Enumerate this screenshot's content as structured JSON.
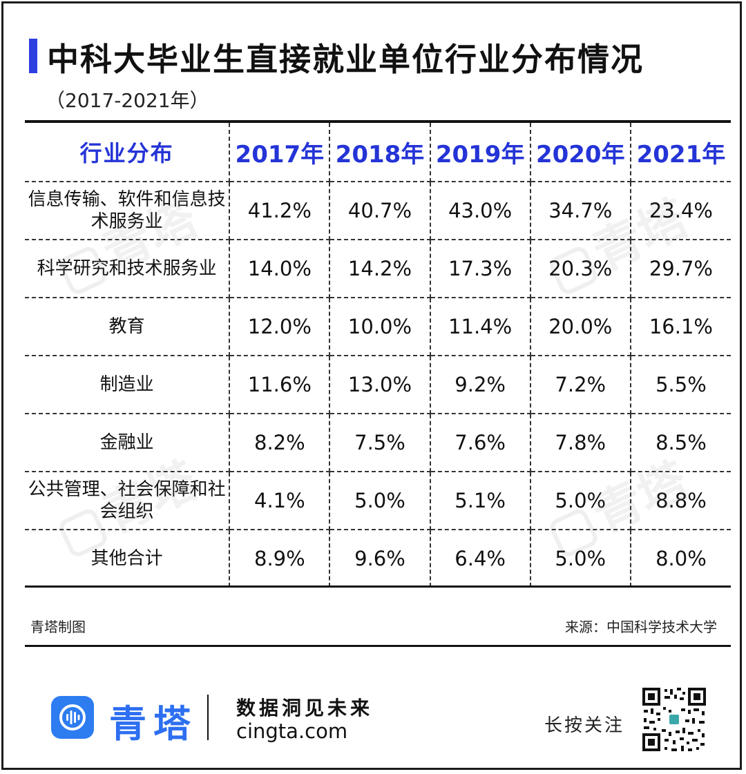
{
  "title": "中科大毕业生直接就业单位行业分布情况",
  "subtitle": "（2017-2021年）",
  "table": {
    "header": [
      "行业分布",
      "2017年",
      "2018年",
      "2019年",
      "2020年",
      "2021年"
    ],
    "rows": [
      {
        "category": "信息传输、软件和信息技术服务业",
        "values": [
          "41.2%",
          "40.7%",
          "43.0%",
          "34.7%",
          "23.4%"
        ]
      },
      {
        "category": "科学研究和技术服务业",
        "values": [
          "14.0%",
          "14.2%",
          "17.3%",
          "20.3%",
          "29.7%"
        ]
      },
      {
        "category": "教育",
        "values": [
          "12.0%",
          "10.0%",
          "11.4%",
          "20.0%",
          "16.1%"
        ]
      },
      {
        "category": "制造业",
        "values": [
          "11.6%",
          "13.0%",
          "9.2%",
          "7.2%",
          "5.5%"
        ]
      },
      {
        "category": "金融业",
        "values": [
          "8.2%",
          "7.5%",
          "7.6%",
          "7.8%",
          "8.5%"
        ]
      },
      {
        "category": "公共管理、社会保障和社会组织",
        "values": [
          "4.1%",
          "5.0%",
          "5.1%",
          "5.0%",
          "8.8%"
        ]
      },
      {
        "category": "其他合计",
        "values": [
          "8.9%",
          "9.6%",
          "6.4%",
          "5.0%",
          "8.0%"
        ]
      }
    ]
  },
  "footer": {
    "credit": "青塔制图",
    "source": "来源：中国科学技术大学"
  },
  "brand": {
    "name": "青塔",
    "slogan": "数据洞见未来",
    "url": "cingta.com",
    "follow_label": "长按关注",
    "watermark": "青塔"
  },
  "colors": {
    "accent": "#2d3fe0",
    "header_text": "#2434d6",
    "brand": "#2d7cf0"
  },
  "icons": {
    "brand_logo": "qingta-logo-icon",
    "qr": "qr-code-icon"
  }
}
